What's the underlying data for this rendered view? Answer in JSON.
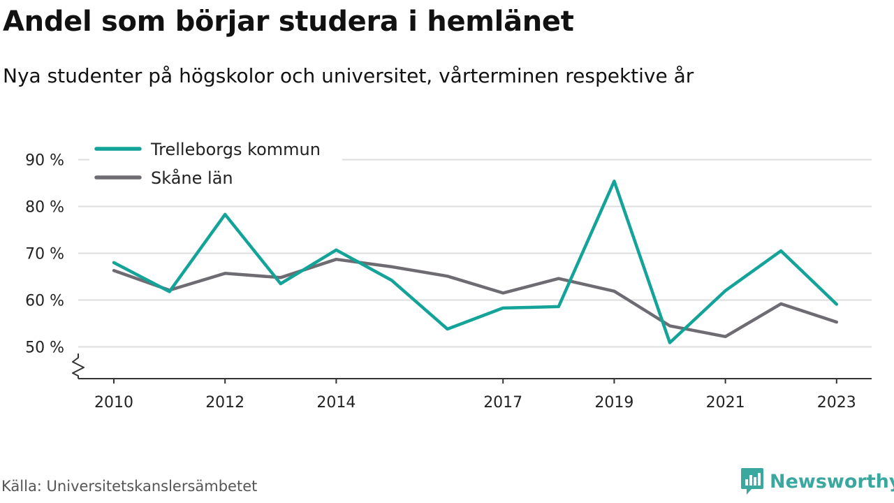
{
  "colors": {
    "trelleborg": "#14a399",
    "skane": "#6e6c72",
    "grid": "#dddddd",
    "axis": "#333333",
    "brand": "#3aa89e"
  },
  "footer": {
    "source": "Källa: Universitetskanslersämbetet",
    "brand": "Newsworthy",
    "brand_icon": "newsworthy-logo-icon"
  },
  "chart_data": {
    "type": "line",
    "title": "Andel som börjar studera i hemlänet",
    "subtitle": "Nya studenter på högskolor och universitet, vårterminen respektive år",
    "xlabel": "",
    "ylabel": "",
    "ylim": [
      45,
      92
    ],
    "y_axis_break": true,
    "y_ticks": [
      50,
      60,
      70,
      80,
      90
    ],
    "y_tick_labels": [
      "50 %",
      "60 %",
      "70 %",
      "80 %",
      "90 %"
    ],
    "x": [
      2010,
      2011,
      2012,
      2013,
      2014,
      2015,
      2016,
      2017,
      2018,
      2019,
      2020,
      2021,
      2022,
      2023
    ],
    "x_ticks": [
      2010,
      2012,
      2014,
      2017,
      2019,
      2021,
      2023
    ],
    "x_tick_labels": [
      "2010",
      "2012",
      "2014",
      "2017",
      "2019",
      "2021",
      "2023"
    ],
    "grid": true,
    "legend_position": "top-left",
    "series": [
      {
        "name": "Trelleborgs kommun",
        "values": [
          68,
          61.8,
          78.3,
          63.5,
          70.7,
          64.2,
          53.8,
          58.3,
          58.6,
          85.4,
          50.9,
          62,
          70.5,
          59.1
        ]
      },
      {
        "name": "Skåne län",
        "values": [
          66.3,
          62.1,
          65.7,
          64.8,
          68.7,
          67.1,
          65.1,
          61.5,
          64.6,
          61.9,
          54.5,
          52.2,
          59.2,
          55.3
        ]
      }
    ]
  }
}
